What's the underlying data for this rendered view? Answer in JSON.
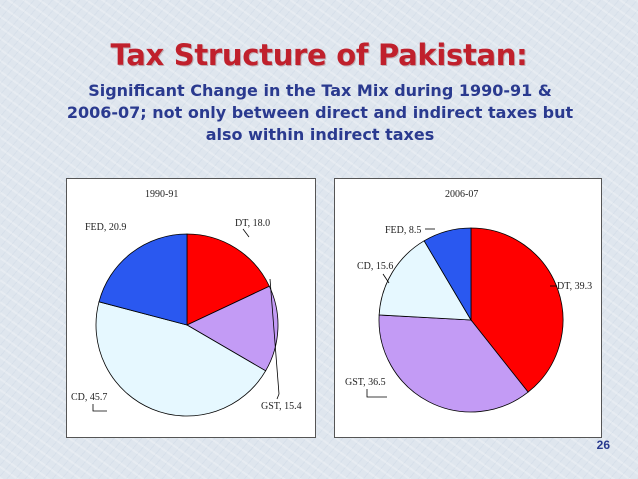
{
  "slide": {
    "title": "Tax Structure of Pakistan:",
    "subtitle": "Significant Change in the Tax Mix during 1990-91 & 2006-07; not only between direct and indirect taxes but also within indirect taxes",
    "page_number": "26"
  },
  "chart_data": [
    {
      "type": "pie",
      "title": "1990-91",
      "slices": [
        {
          "label": "DT",
          "value": 18.0,
          "display": "DT, 18.0",
          "color": "#ff0000"
        },
        {
          "label": "GST",
          "value": 15.4,
          "display": "GST, 15.4",
          "color": "#c39bf5"
        },
        {
          "label": "CD",
          "value": 45.7,
          "display": "CD, 45.7",
          "color": "#e6f8ff"
        },
        {
          "label": "FED",
          "value": 20.9,
          "display": "FED, 20.9",
          "color": "#2a58f0"
        }
      ]
    },
    {
      "type": "pie",
      "title": "2006-07",
      "slices": [
        {
          "label": "DT",
          "value": 39.3,
          "display": "DT, 39.3",
          "color": "#ff0000"
        },
        {
          "label": "GST",
          "value": 36.5,
          "display": "GST, 36.5",
          "color": "#c39bf5"
        },
        {
          "label": "CD",
          "value": 15.6,
          "display": "CD, 15.6",
          "color": "#e6f8ff"
        },
        {
          "label": "FED",
          "value": 8.5,
          "display": "FED, 8.5",
          "color": "#2a58f0"
        }
      ]
    }
  ]
}
